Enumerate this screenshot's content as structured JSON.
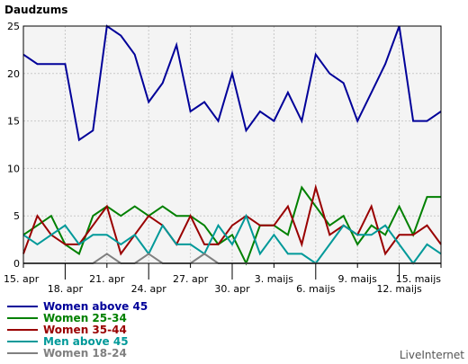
{
  "chart_data": {
    "type": "line",
    "title": "Daudzums",
    "ylim": [
      0,
      25
    ],
    "yticks": [
      0,
      5,
      10,
      15,
      20,
      25
    ],
    "grid": true,
    "legend_position": "bottom-left",
    "xticks": [
      {
        "index": 0,
        "label": "15. apr"
      },
      {
        "index": 3,
        "label": "18. apr"
      },
      {
        "index": 6,
        "label": "21. apr"
      },
      {
        "index": 9,
        "label": "24. apr"
      },
      {
        "index": 12,
        "label": "27. apr"
      },
      {
        "index": 15,
        "label": "30. apr"
      },
      {
        "index": 18,
        "label": "3. maijs"
      },
      {
        "index": 21,
        "label": "6. maijs"
      },
      {
        "index": 24,
        "label": "9. maijs"
      },
      {
        "index": 27,
        "label": "12. maijs"
      },
      {
        "index": 30,
        "label": "15. maijs"
      }
    ],
    "x": [
      "15. apr",
      "16. apr",
      "17. apr",
      "18. apr",
      "19. apr",
      "20. apr",
      "21. apr",
      "22. apr",
      "23. apr",
      "24. apr",
      "25. apr",
      "26. apr",
      "27. apr",
      "28. apr",
      "29. apr",
      "30. apr",
      "1. maijs",
      "2. maijs",
      "3. maijs",
      "4. maijs",
      "5. maijs",
      "6. maijs",
      "7. maijs",
      "8. maijs",
      "9. maijs",
      "10. maijs",
      "11. maijs",
      "12. maijs",
      "13. maijs",
      "14. maijs",
      "15. maijs"
    ],
    "series": [
      {
        "name": "Women above 45",
        "color": "#000099",
        "values": [
          22,
          21,
          21,
          21,
          13,
          14,
          25,
          24,
          22,
          17,
          19,
          23,
          16,
          17,
          15,
          20,
          14,
          16,
          15,
          18,
          15,
          22,
          20,
          19,
          15,
          18,
          21,
          25,
          15,
          15,
          16
        ]
      },
      {
        "name": "Women 25-34",
        "color": "#008000",
        "values": [
          3,
          4,
          5,
          2,
          1,
          5,
          6,
          5,
          6,
          5,
          6,
          5,
          5,
          4,
          2,
          3,
          0,
          4,
          4,
          3,
          8,
          6,
          4,
          5,
          2,
          4,
          3,
          6,
          3,
          7,
          7
        ]
      },
      {
        "name": "Women 35-44",
        "color": "#990000",
        "values": [
          1,
          5,
          3,
          2,
          2,
          4,
          6,
          1,
          3,
          5,
          4,
          2,
          5,
          2,
          2,
          4,
          5,
          4,
          4,
          6,
          2,
          8,
          3,
          4,
          3,
          6,
          1,
          3,
          3,
          4,
          2
        ]
      },
      {
        "name": "Men above 45",
        "color": "#009999",
        "values": [
          3,
          2,
          3,
          4,
          2,
          3,
          3,
          2,
          3,
          1,
          4,
          2,
          2,
          1,
          4,
          2,
          5,
          1,
          3,
          1,
          1,
          0,
          2,
          4,
          3,
          3,
          4,
          2,
          0,
          2,
          1
        ]
      },
      {
        "name": "Women 18-24",
        "color": "#808080",
        "values": [
          0,
          0,
          0,
          0,
          0,
          0,
          1,
          0,
          0,
          1,
          0,
          0,
          0,
          1,
          0,
          0,
          0,
          0,
          0,
          0,
          0,
          0,
          0,
          0,
          0,
          0,
          0,
          0,
          0,
          0,
          0
        ]
      }
    ]
  },
  "brand": "LiveInternet"
}
